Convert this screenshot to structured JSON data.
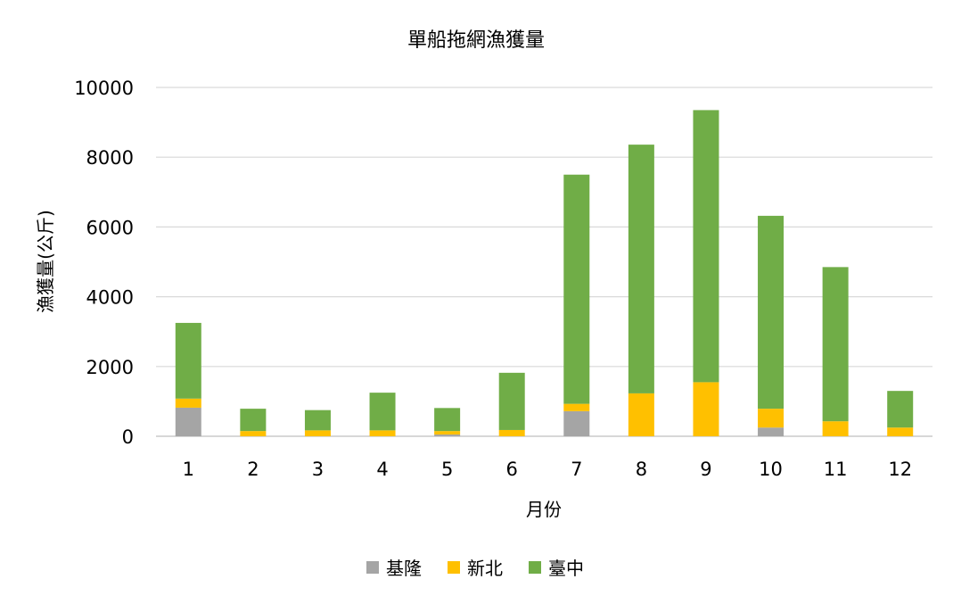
{
  "chart_data": {
    "type": "bar",
    "stacked": true,
    "title": "單船拖網漁獲量",
    "xlabel": "月份",
    "ylabel": "漁獲量(公斤)",
    "ylim": [
      0,
      10000
    ],
    "yticks": [
      0,
      2000,
      4000,
      6000,
      8000,
      10000
    ],
    "grid": true,
    "legend_position": "bottom",
    "categories": [
      "1",
      "2",
      "3",
      "4",
      "5",
      "6",
      "7",
      "8",
      "9",
      "10",
      "11",
      "12"
    ],
    "series": [
      {
        "name": "基隆",
        "color": "#a5a5a5",
        "values": [
          820,
          0,
          0,
          0,
          50,
          0,
          720,
          0,
          0,
          250,
          0,
          0
        ]
      },
      {
        "name": "新北",
        "color": "#ffc000",
        "values": [
          260,
          150,
          170,
          170,
          100,
          180,
          210,
          1230,
          1550,
          540,
          430,
          250
        ]
      },
      {
        "name": "臺中",
        "color": "#70ad47",
        "values": [
          2170,
          640,
          580,
          1080,
          660,
          1640,
          6570,
          7130,
          7800,
          5530,
          4420,
          1050
        ]
      }
    ]
  }
}
